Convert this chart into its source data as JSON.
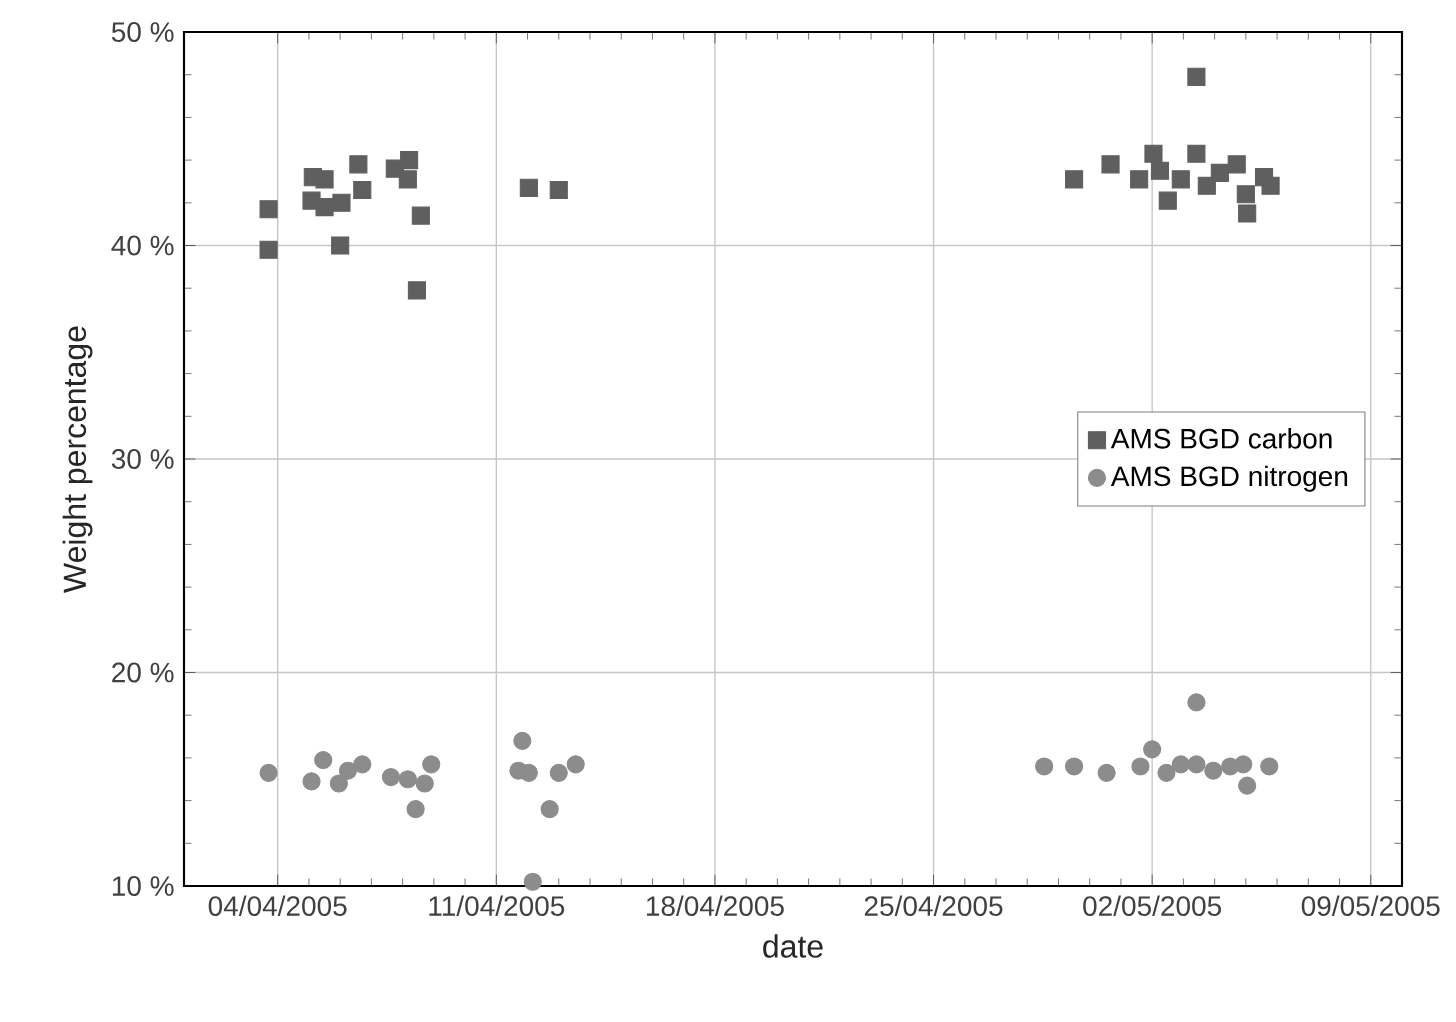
{
  "chart_data": {
    "type": "scatter",
    "xlabel": "date",
    "ylabel": "Weight percentage",
    "xlim": [
      "2005-04-01",
      "2005-05-10"
    ],
    "xticks": [
      {
        "value": "2005-04-04",
        "label": "04/04/2005"
      },
      {
        "value": "2005-04-11",
        "label": "11/04/2005"
      },
      {
        "value": "2005-04-18",
        "label": "18/04/2005"
      },
      {
        "value": "2005-04-25",
        "label": "25/04/2005"
      },
      {
        "value": "2005-05-02",
        "label": "02/05/2005"
      },
      {
        "value": "2005-05-09",
        "label": "09/05/2005"
      }
    ],
    "ylim": [
      10,
      50
    ],
    "yticks": [
      {
        "value": 10,
        "label": "10 %"
      },
      {
        "value": 20,
        "label": "20 %"
      },
      {
        "value": 30,
        "label": "30 %"
      },
      {
        "value": 40,
        "label": "40 %"
      },
      {
        "value": 50,
        "label": "50 %"
      }
    ],
    "grid": true,
    "legend": "right",
    "series": [
      {
        "name": "AMS BGD carbon",
        "color": "#5f5f5f",
        "marker": "square",
        "x": [
          "2005-04-03T17:00",
          "2005-04-03T17:00",
          "2005-04-05T03:00",
          "2005-04-05T12:00",
          "2005-04-05T02:00",
          "2005-04-05T12:00",
          "2005-04-06T01:00",
          "2005-04-06T00:00",
          "2005-04-06T14:00",
          "2005-04-06T17:00",
          "2005-04-07T18:00",
          "2005-04-08T05:00",
          "2005-04-08T04:00",
          "2005-04-08T14:00",
          "2005-04-08T11:00",
          "2005-04-12T01:00",
          "2005-04-13T00:00",
          "2005-05-03T10:00",
          "2005-04-29T12:00",
          "2005-04-30T16:00",
          "2005-05-01T14:00",
          "2005-05-02T01:00",
          "2005-05-02T06:00",
          "2005-05-02T12:00",
          "2005-05-02T22:00",
          "2005-05-03T10:00",
          "2005-05-03T18:00",
          "2005-05-04T04:00",
          "2005-05-04T17:00",
          "2005-05-05T01:00",
          "2005-05-05T00:00",
          "2005-05-05T14:00",
          "2005-05-05T19:00"
        ],
        "values": [
          41.7,
          39.8,
          43.2,
          43.1,
          42.1,
          41.8,
          42.0,
          40.0,
          43.8,
          42.6,
          43.6,
          44.0,
          43.1,
          41.4,
          37.9,
          42.7,
          42.6,
          47.9,
          43.1,
          43.8,
          43.1,
          44.3,
          43.5,
          42.1,
          43.1,
          44.3,
          42.8,
          43.4,
          43.8,
          41.5,
          42.4,
          43.2,
          42.8
        ]
      },
      {
        "name": "AMS BGD nitrogen",
        "color": "#8c8c8c",
        "marker": "circle",
        "x": [
          "2005-04-03T17:00",
          "2005-04-05T02:00",
          "2005-04-05T11:00",
          "2005-04-05T23:00",
          "2005-04-06T06:00",
          "2005-04-06T17:00",
          "2005-04-07T15:00",
          "2005-04-08T04:00",
          "2005-04-08T10:00",
          "2005-04-08T22:00",
          "2005-04-08T17:00",
          "2005-04-11T20:00",
          "2005-04-11T17:00",
          "2005-04-12T01:00",
          "2005-04-12T04:00",
          "2005-04-12T17:00",
          "2005-04-13T00:00",
          "2005-04-13T13:00",
          "2005-04-28T13:00",
          "2005-04-29T12:00",
          "2005-04-30T13:00",
          "2005-05-01T15:00",
          "2005-05-02T00:00",
          "2005-05-02T11:00",
          "2005-05-02T22:00",
          "2005-05-03T10:00",
          "2005-05-03T10:00",
          "2005-05-03T23:00",
          "2005-05-04T12:00",
          "2005-05-04T22:00",
          "2005-05-05T01:00",
          "2005-05-05T18:00"
        ],
        "values": [
          15.3,
          14.9,
          15.9,
          14.8,
          15.4,
          15.7,
          15.1,
          15.0,
          13.6,
          15.7,
          14.8,
          16.8,
          15.4,
          15.3,
          10.2,
          13.6,
          15.3,
          15.7,
          15.6,
          15.6,
          15.3,
          15.6,
          16.4,
          15.3,
          15.7,
          18.6,
          15.7,
          15.4,
          15.6,
          15.7,
          14.7,
          15.6
        ]
      }
    ]
  }
}
